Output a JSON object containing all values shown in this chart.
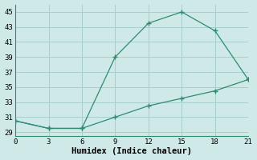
{
  "xlabel": "Humidex (Indice chaleur)",
  "line1_x": [
    0,
    3,
    6,
    9,
    12,
    15,
    18,
    21
  ],
  "line1_y": [
    30.5,
    29.5,
    29.5,
    39.0,
    43.5,
    45.0,
    42.5,
    36.0
  ],
  "line2_x": [
    0,
    3,
    6,
    9,
    12,
    15,
    18,
    21
  ],
  "line2_y": [
    30.5,
    29.5,
    29.5,
    31.0,
    32.5,
    33.5,
    34.5,
    36.0
  ],
  "line_color": "#2e8b70",
  "bg_color": "#cfe9e9",
  "grid_color": "#a8cece",
  "xlim": [
    0,
    21
  ],
  "ylim": [
    28.5,
    46
  ],
  "xticks": [
    0,
    3,
    6,
    9,
    12,
    15,
    18,
    21
  ],
  "yticks": [
    29,
    31,
    33,
    35,
    37,
    39,
    41,
    43,
    45
  ],
  "tick_fontsize": 6.5,
  "label_fontsize": 7.5,
  "marker_size": 4,
  "linewidth": 0.9
}
